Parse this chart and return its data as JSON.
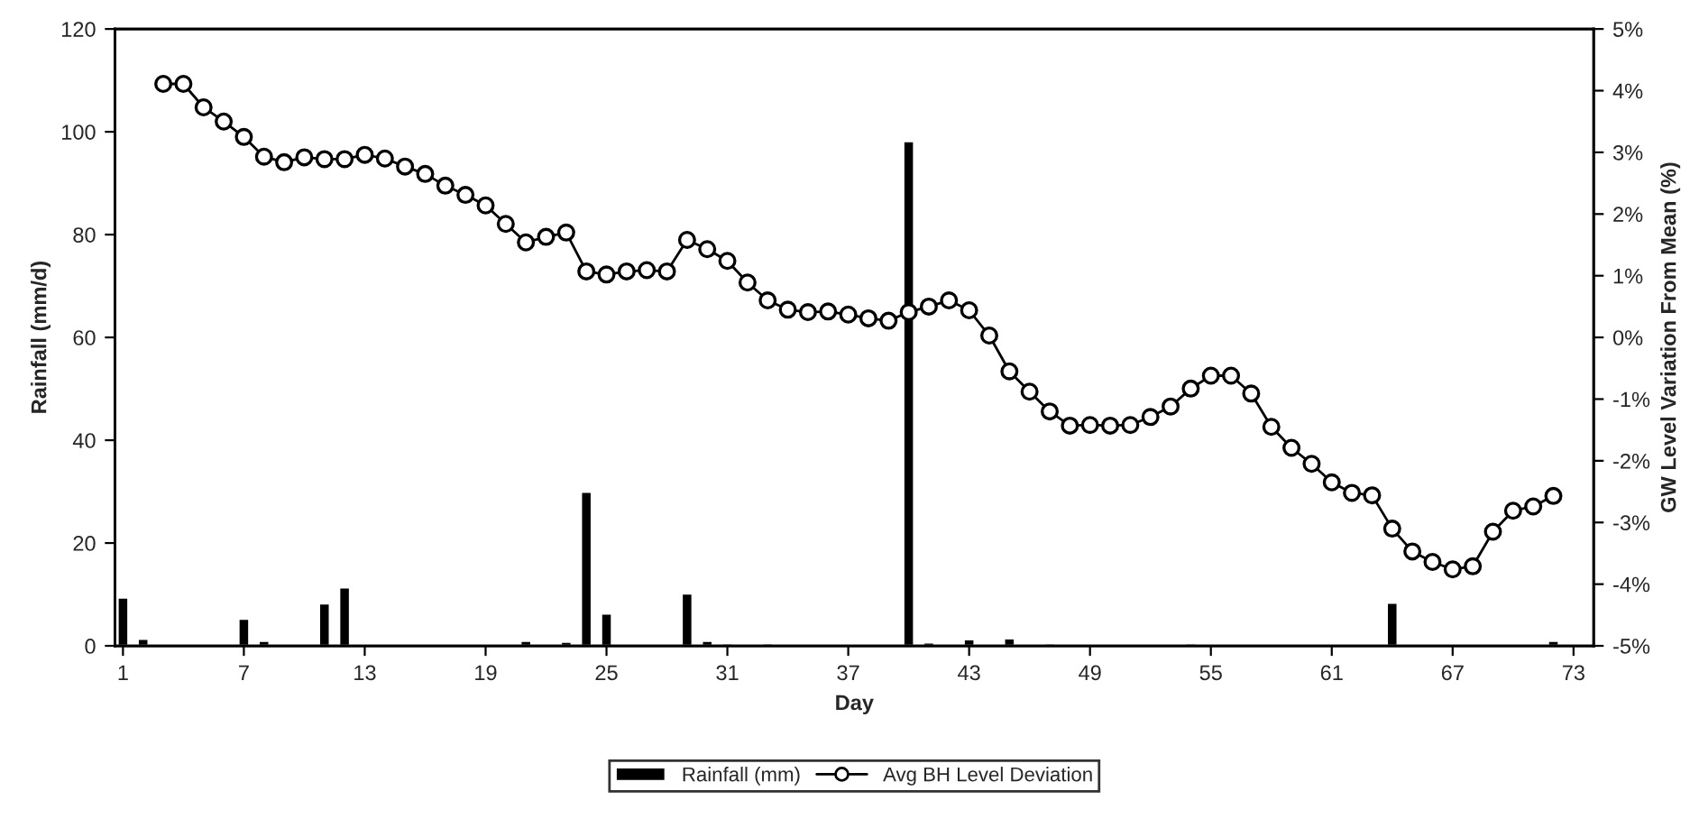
{
  "chart_data": {
    "type": "bar",
    "xlabel": "Day",
    "ylabel": "Rainfall (mm/d)",
    "y2label": "GW Level Variation From Mean (%)",
    "xlim": [
      0.6,
      74
    ],
    "xticks": [
      1,
      7,
      13,
      19,
      25,
      31,
      37,
      43,
      49,
      55,
      61,
      67,
      73
    ],
    "ylim": [
      0,
      120
    ],
    "yticks": [
      0,
      20,
      40,
      60,
      80,
      100,
      120
    ],
    "y2lim": [
      -5,
      5
    ],
    "y2ticks": [
      {
        "value": -5,
        "label": "-5%"
      },
      {
        "value": -4,
        "label": "-4%"
      },
      {
        "value": -3,
        "label": "-3%"
      },
      {
        "value": -2,
        "label": "-2%"
      },
      {
        "value": -1,
        "label": "-1%"
      },
      {
        "value": 0,
        "label": "0%"
      },
      {
        "value": 1,
        "label": "1%"
      },
      {
        "value": 2,
        "label": "2%"
      },
      {
        "value": 3,
        "label": "3%"
      },
      {
        "value": 4,
        "label": "4%"
      },
      {
        "value": 5,
        "label": "5%"
      }
    ],
    "grid": false,
    "legend": "bottom",
    "series": [
      {
        "name": "Rainfall (mm)",
        "color": "#000000",
        "x": [
          1,
          2,
          3,
          4,
          5,
          6,
          7,
          8,
          9,
          10,
          11,
          12,
          21,
          23,
          24,
          25,
          29,
          30,
          31,
          33,
          40,
          41,
          43,
          45,
          47,
          54,
          64,
          72
        ],
        "values": [
          9.4,
          1.4,
          0.3,
          0.3,
          0.3,
          0.3,
          5.3,
          1,
          0.3,
          0.3,
          8.3,
          11.4,
          1,
          0.8,
          30,
          6.3,
          10.2,
          1,
          0.5,
          0.5,
          98.2,
          0.7,
          1.3,
          1.5,
          0.5,
          0.5,
          8.4,
          1
        ]
      },
      {
        "name": "Avg BH Level Deviation",
        "type": "line",
        "axis": "y2",
        "color": "#000000",
        "marker": "circle",
        "line_style": "solid",
        "x": [
          3,
          4,
          5,
          6,
          7,
          8,
          9,
          10,
          11,
          12,
          13,
          14,
          15,
          16,
          17,
          18,
          19,
          20,
          21,
          22,
          23,
          24,
          25,
          26,
          27,
          28,
          29,
          30,
          31,
          32,
          33,
          34,
          35,
          36,
          37,
          38,
          39,
          40,
          41,
          42,
          43,
          44,
          45,
          46,
          47,
          48,
          49,
          50,
          51,
          52,
          53,
          54,
          55,
          56,
          57,
          58,
          59,
          60,
          61,
          62,
          63,
          64,
          65,
          66,
          67,
          68,
          69,
          70,
          71,
          72
        ],
        "values": [
          4.11,
          4.11,
          3.73,
          3.5,
          3.25,
          2.93,
          2.84,
          2.92,
          2.89,
          2.89,
          2.96,
          2.9,
          2.77,
          2.65,
          2.46,
          2.31,
          2.14,
          1.84,
          1.54,
          1.63,
          1.7,
          1.07,
          1.02,
          1.07,
          1.09,
          1.07,
          1.58,
          1.43,
          1.24,
          0.89,
          0.6,
          0.45,
          0.41,
          0.42,
          0.37,
          0.31,
          0.27,
          0.41,
          0.5,
          0.6,
          0.44,
          0.03,
          -0.55,
          -0.88,
          -1.2,
          -1.43,
          -1.42,
          -1.43,
          -1.42,
          -1.29,
          -1.12,
          -0.83,
          -0.62,
          -0.62,
          -0.91,
          -1.45,
          -1.79,
          -2.05,
          -2.35,
          -2.52,
          -2.56,
          -3.1,
          -3.47,
          -3.64,
          -3.76,
          -3.71,
          -3.15,
          -2.81,
          -2.74,
          -2.57
        ]
      }
    ]
  }
}
